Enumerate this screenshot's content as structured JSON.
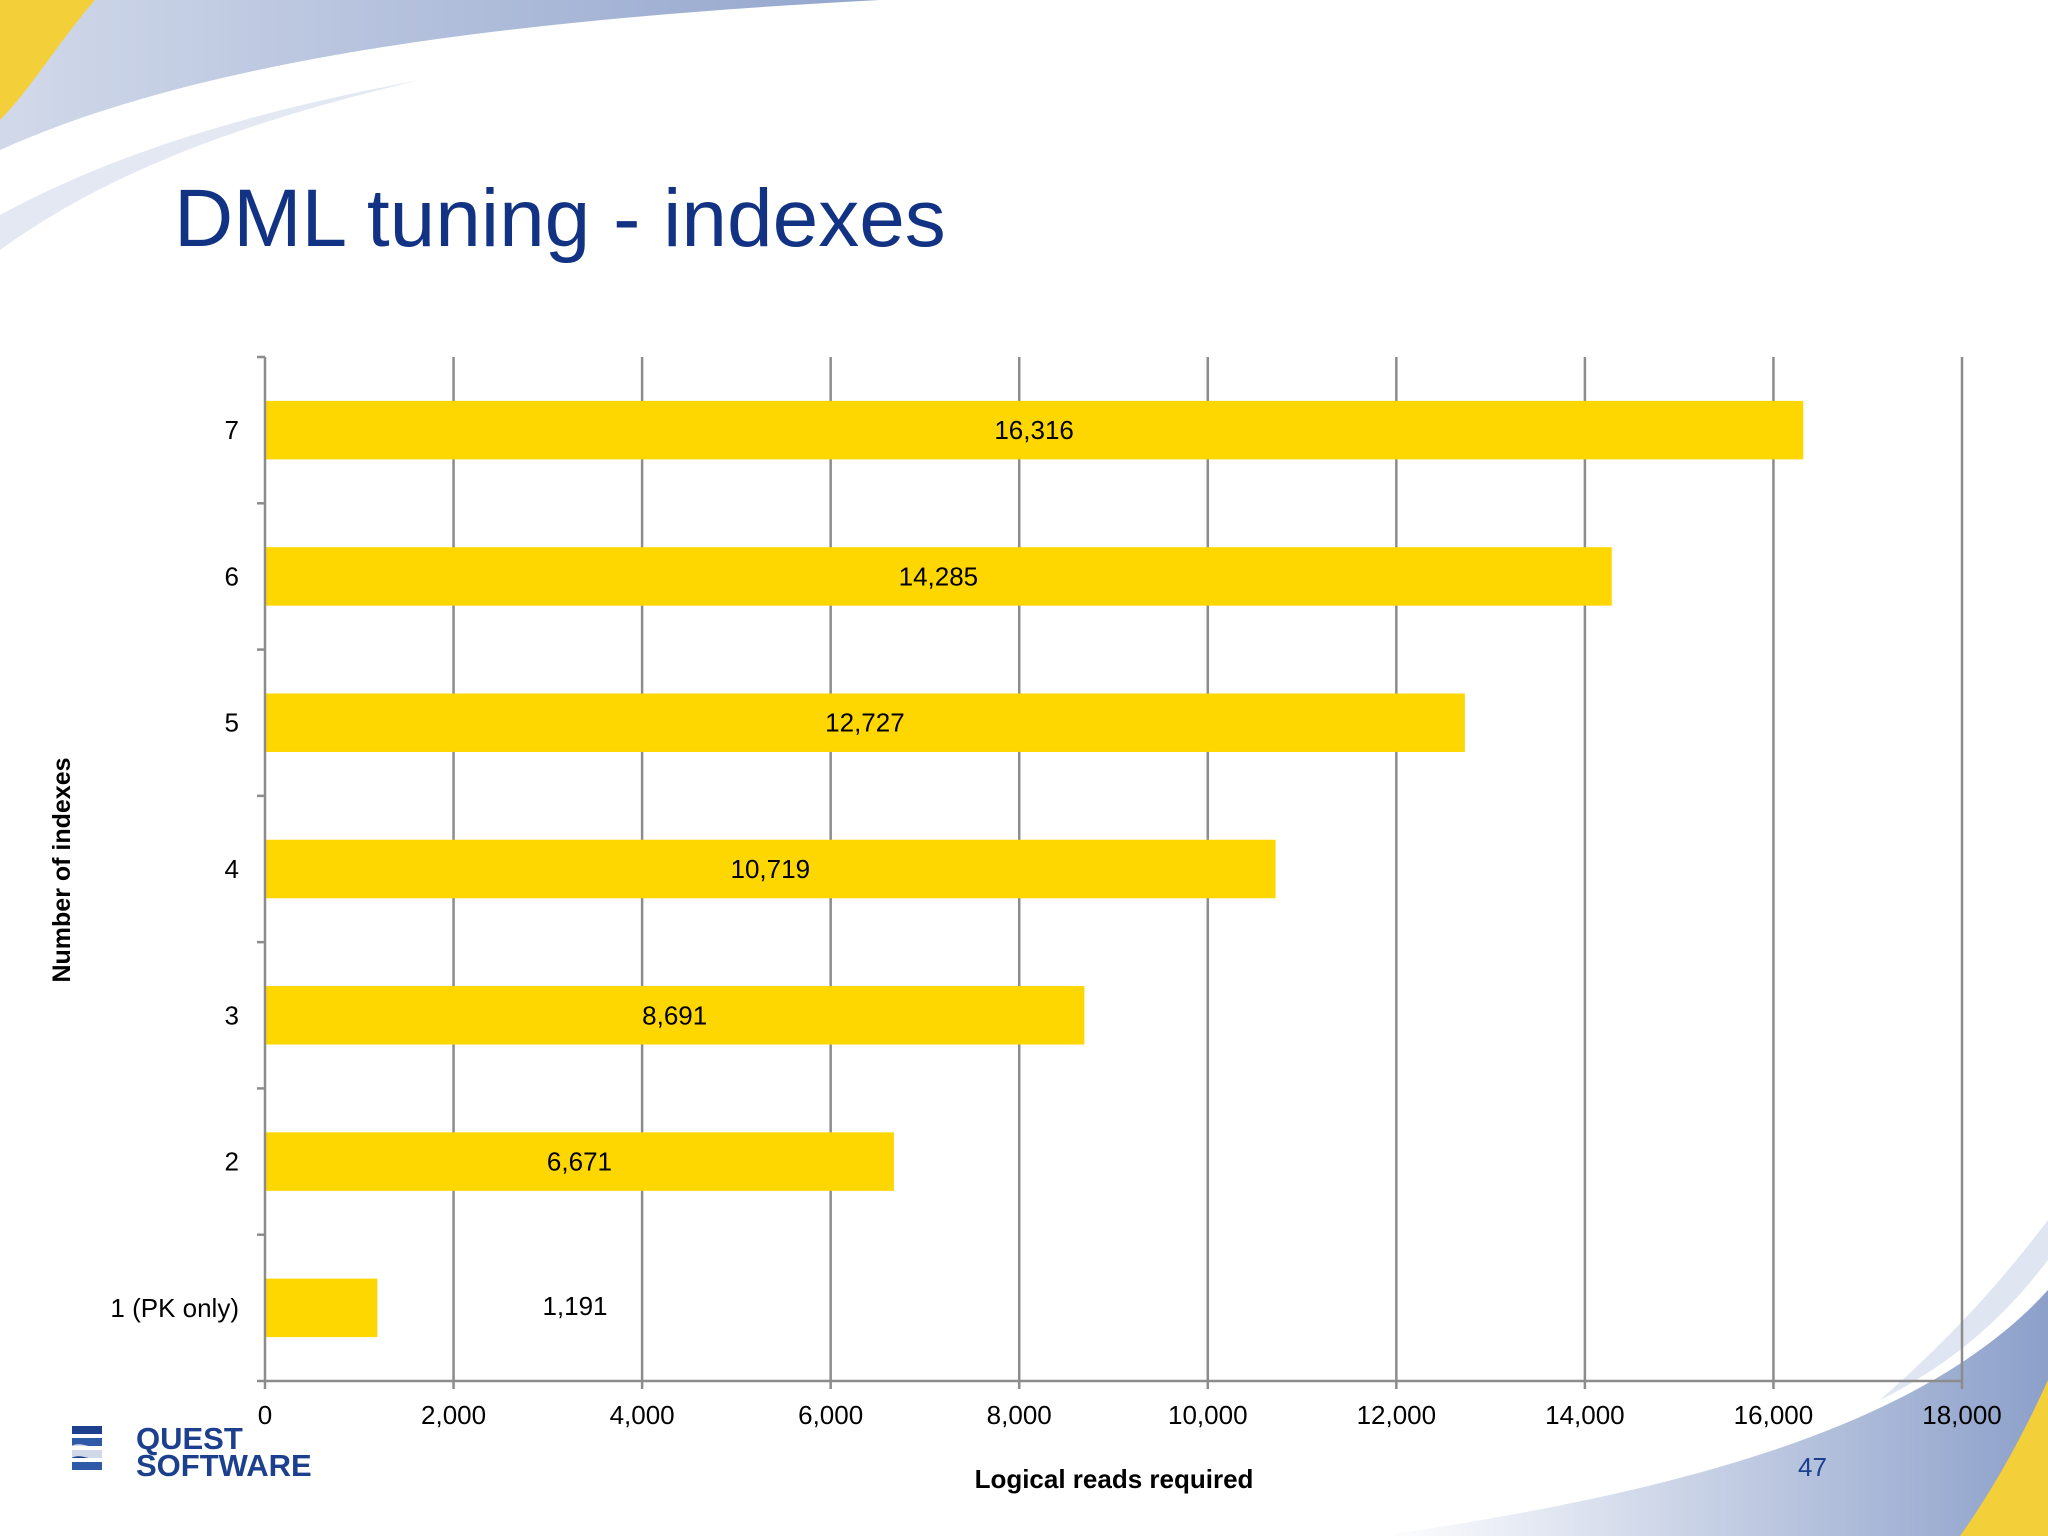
{
  "slide": {
    "title": "DML tuning - indexes",
    "page_number": "47"
  },
  "logo": {
    "line1": "QUEST",
    "line2": "SOFTWARE"
  },
  "colors": {
    "title": "#123384",
    "bar": "#FFD700",
    "grid": "#8c8c8c"
  },
  "chart_data": {
    "type": "bar",
    "orientation": "horizontal",
    "categories": [
      "1 (PK only)",
      "2",
      "3",
      "4",
      "5",
      "6",
      "7"
    ],
    "values": [
      1191,
      6671,
      8691,
      10719,
      12727,
      14285,
      16316
    ],
    "data_labels": [
      "1,191",
      "6,671",
      "8,691",
      "10,719",
      "12,727",
      "14,285",
      "16,316"
    ],
    "xlabel": "Logical reads required",
    "ylabel": "Number of indexes",
    "xlim": [
      0,
      18000
    ],
    "x_ticks": [
      0,
      2000,
      4000,
      6000,
      8000,
      10000,
      12000,
      14000,
      16000,
      18000
    ],
    "x_tick_labels": [
      "0",
      "2,000",
      "4,000",
      "6,000",
      "8,000",
      "10,000",
      "12,000",
      "14,000",
      "16,000",
      "18,000"
    ],
    "grid": true,
    "legend": "none"
  }
}
